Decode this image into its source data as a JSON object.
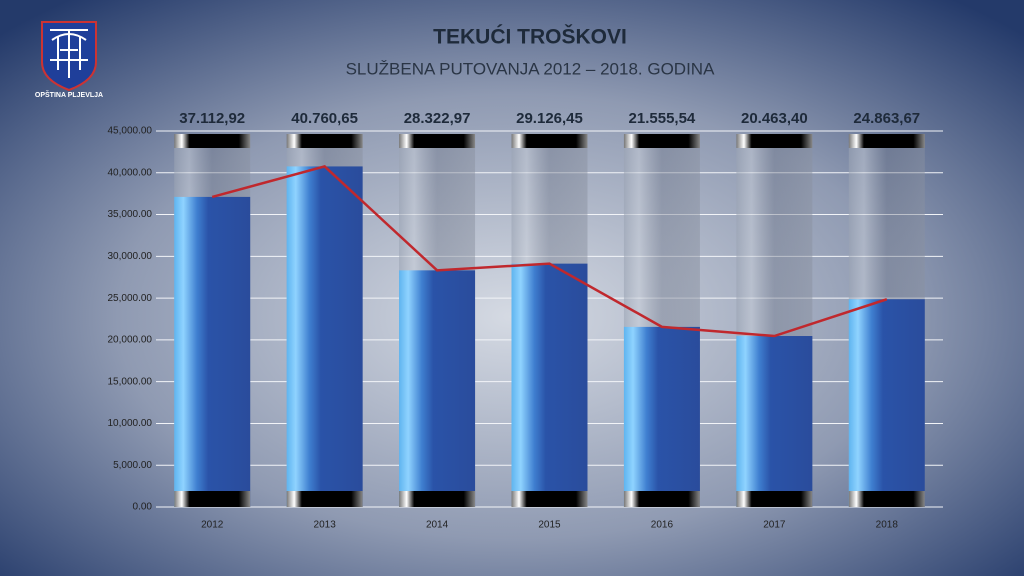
{
  "logo": {
    "text": "OPŠTINA PLJEVLJA"
  },
  "chart_data": {
    "type": "bar",
    "title": "TEKUĆI TROŠKOVI",
    "subtitle": "SLUŽBENA PUTOVANJA 2012 – 2018. GODINA",
    "categories": [
      "2012",
      "2013",
      "2014",
      "2015",
      "2016",
      "2017",
      "2018"
    ],
    "values": [
      37112.92,
      40760.65,
      28322.97,
      29126.45,
      21555.54,
      20463.4,
      24863.67
    ],
    "value_labels": [
      "37.112,92",
      "40.760,65",
      "28.322,97",
      "29.126,45",
      "21.555,54",
      "20.463,40",
      "24.863,67"
    ],
    "color": "#2a53a8",
    "line_color": "#c0282d",
    "ylim": [
      0,
      45000
    ],
    "yticks": [
      {
        "value": 0,
        "label": "0.00"
      },
      {
        "value": 5000,
        "label": "5,000.00"
      },
      {
        "value": 10000,
        "label": "10,000.00"
      },
      {
        "value": 15000,
        "label": "15,000.00"
      },
      {
        "value": 20000,
        "label": "20,000.00"
      },
      {
        "value": 25000,
        "label": "25,000.00"
      },
      {
        "value": 30000,
        "label": "30,000.00"
      },
      {
        "value": 35000,
        "label": "35,000.00"
      },
      {
        "value": 40000,
        "label": "40,000.00"
      },
      {
        "value": 45000,
        "label": "45,000.00"
      }
    ],
    "grid": true
  }
}
